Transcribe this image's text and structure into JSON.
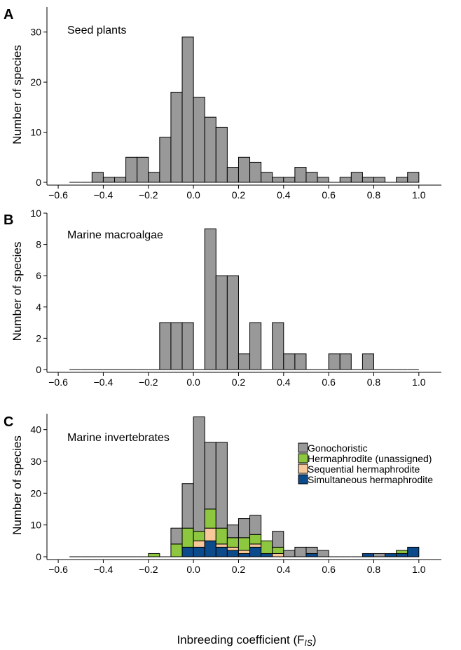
{
  "figure": {
    "xlabel_main": "Inbreeding coefficient (F",
    "xlabel_sub": "IS",
    "xlabel_close": ")"
  },
  "colors": {
    "gray": "#999999",
    "green": "#8dc63f",
    "peach": "#f7c99a",
    "blue": "#0b4a8b",
    "edge": "#000000"
  },
  "chart_data": [
    {
      "type": "bar",
      "panel_letter": "A",
      "title": "Seed plants",
      "ylabel": "Number of species",
      "xlim": [
        -0.65,
        1.1
      ],
      "ylim": [
        0,
        35
      ],
      "xticks": [
        "−0.6",
        "−0.4",
        "−0.2",
        "0.0",
        "0.2",
        "0.4",
        "0.6",
        "0.8",
        "1.0"
      ],
      "xtick_values": [
        -0.6,
        -0.4,
        -0.2,
        0.0,
        0.2,
        0.4,
        0.6,
        0.8,
        1.0
      ],
      "yticks": [
        "0",
        "10",
        "20",
        "30"
      ],
      "ytick_values": [
        0,
        10,
        20,
        30
      ],
      "bin_width": 0.05,
      "bin_start": -0.55,
      "series": [
        {
          "color_key": "gray",
          "values": [
            0,
            0,
            2,
            1,
            1,
            5,
            5,
            2,
            9,
            18,
            29,
            17,
            13,
            11,
            3,
            5,
            4,
            2,
            1,
            1,
            3,
            2,
            1,
            0,
            1,
            2,
            1,
            1,
            0,
            1,
            2
          ]
        }
      ]
    },
    {
      "type": "bar",
      "panel_letter": "B",
      "title": "Marine macroalgae",
      "ylabel": "Number of species",
      "xlim": [
        -0.65,
        1.1
      ],
      "ylim": [
        0,
        10
      ],
      "xticks": [
        "−0.6",
        "−0.4",
        "−0.2",
        "0.0",
        "0.2",
        "0.4",
        "0.6",
        "0.8",
        "1.0"
      ],
      "xtick_values": [
        -0.6,
        -0.4,
        -0.2,
        0.0,
        0.2,
        0.4,
        0.6,
        0.8,
        1.0
      ],
      "yticks": [
        "0",
        "2",
        "4",
        "6",
        "8",
        "10"
      ],
      "ytick_values": [
        0,
        2,
        4,
        6,
        8,
        10
      ],
      "bin_width": 0.05,
      "bin_start": -0.55,
      "series": [
        {
          "color_key": "gray",
          "values": [
            0,
            0,
            0,
            0,
            0,
            0,
            0,
            0,
            3,
            3,
            3,
            0,
            9,
            6,
            6,
            1,
            3,
            0,
            3,
            1,
            1,
            0,
            0,
            1,
            1,
            0,
            1,
            0,
            0,
            0,
            0
          ]
        }
      ]
    },
    {
      "type": "bar",
      "stacked": true,
      "panel_letter": "C",
      "title": "Marine invertebrates",
      "ylabel": "Number of species",
      "xlim": [
        -0.65,
        1.1
      ],
      "ylim": [
        0,
        45
      ],
      "xticks": [
        "−0.6",
        "−0.4",
        "−0.2",
        "0.0",
        "0.2",
        "0.4",
        "0.6",
        "0.8",
        "1.0"
      ],
      "xtick_values": [
        -0.6,
        -0.4,
        -0.2,
        0.0,
        0.2,
        0.4,
        0.6,
        0.8,
        1.0
      ],
      "yticks": [
        "0",
        "10",
        "20",
        "30",
        "40"
      ],
      "ytick_values": [
        0,
        10,
        20,
        30,
        40
      ],
      "bin_width": 0.05,
      "bin_start": -0.55,
      "legend_placement": "upper-right",
      "series": [
        {
          "name": "Simultaneous hermaphrodite",
          "color_key": "blue",
          "values": [
            0,
            0,
            0,
            0,
            0,
            0,
            0,
            0,
            0,
            0,
            3,
            3,
            5,
            3,
            2,
            1,
            3,
            1,
            0,
            0,
            0,
            1,
            0,
            0,
            0,
            0,
            1,
            0,
            1,
            1,
            3
          ]
        },
        {
          "name": "Sequential hermaphrodite",
          "color_key": "peach",
          "values": [
            0,
            0,
            0,
            0,
            0,
            0,
            0,
            0,
            0,
            0,
            0,
            2,
            4,
            1,
            1,
            1,
            1,
            0,
            1,
            0,
            0,
            0,
            0,
            0,
            0,
            0,
            0,
            0,
            0,
            0,
            0
          ]
        },
        {
          "name": "Hermaphrodite (unassigned)",
          "color_key": "green",
          "values": [
            0,
            0,
            0,
            0,
            0,
            0,
            0,
            1,
            0,
            4,
            6,
            3,
            6,
            5,
            3,
            4,
            3,
            4,
            2,
            0,
            0,
            0,
            0,
            0,
            0,
            0,
            0,
            0,
            0,
            1,
            0
          ]
        },
        {
          "name": "Gonochoristic",
          "color_key": "gray",
          "values": [
            0,
            0,
            0,
            0,
            0,
            0,
            0,
            0,
            0,
            5,
            14,
            36,
            21,
            27,
            4,
            6,
            6,
            0,
            5,
            2,
            3,
            2,
            2,
            0,
            0,
            0,
            0,
            1,
            0,
            0,
            0
          ]
        }
      ],
      "legend_order": [
        "Gonochoristic",
        "Hermaphrodite (unassigned)",
        "Sequential hermaphrodite",
        "Simultaneous hermaphrodite"
      ]
    }
  ]
}
